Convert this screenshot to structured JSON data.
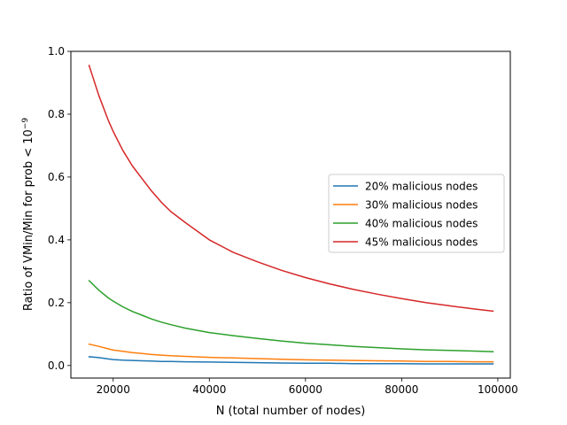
{
  "chart_data": {
    "type": "line",
    "title": "",
    "xlabel": "N (total number of nodes)",
    "ylabel_prefix": "Ratio of VMin/Min for prob < 10",
    "ylabel_exponent": "−9",
    "xlim": [
      11200,
      102600
    ],
    "ylim": [
      -0.04,
      1.0
    ],
    "xticks": [
      20000,
      40000,
      60000,
      80000,
      100000
    ],
    "xtick_labels": [
      "20000",
      "40000",
      "60000",
      "80000",
      "100000"
    ],
    "yticks": [
      0.0,
      0.2,
      0.4,
      0.6,
      0.8,
      1.0
    ],
    "ytick_labels": [
      "0.0",
      "0.2",
      "0.4",
      "0.6",
      "0.8",
      "1.0"
    ],
    "grid": false,
    "legend_position": "center-right",
    "x": [
      15000,
      17000,
      19000,
      20000,
      22000,
      24000,
      26000,
      28000,
      30000,
      32000,
      35000,
      40000,
      45000,
      50000,
      55000,
      60000,
      65000,
      70000,
      75000,
      80000,
      85000,
      90000,
      95000,
      99000
    ],
    "series": [
      {
        "name": "20% malicious nodes",
        "color": "#1f77b4",
        "values": [
          0.028,
          0.025,
          0.021,
          0.019,
          0.017,
          0.016,
          0.015,
          0.014,
          0.013,
          0.013,
          0.012,
          0.011,
          0.01,
          0.009,
          0.008,
          0.007,
          0.007,
          0.006,
          0.006,
          0.006,
          0.005,
          0.005,
          0.005,
          0.005
        ]
      },
      {
        "name": "30% malicious nodes",
        "color": "#ff7f0e",
        "values": [
          0.068,
          0.061,
          0.053,
          0.049,
          0.045,
          0.041,
          0.038,
          0.035,
          0.033,
          0.031,
          0.029,
          0.026,
          0.024,
          0.022,
          0.02,
          0.018,
          0.017,
          0.016,
          0.015,
          0.014,
          0.013,
          0.013,
          0.012,
          0.012
        ]
      },
      {
        "name": "40% malicious nodes",
        "color": "#2ca02c",
        "values": [
          0.27,
          0.24,
          0.215,
          0.205,
          0.187,
          0.172,
          0.16,
          0.148,
          0.138,
          0.13,
          0.119,
          0.105,
          0.095,
          0.086,
          0.078,
          0.071,
          0.066,
          0.061,
          0.057,
          0.053,
          0.05,
          0.048,
          0.046,
          0.044
        ]
      },
      {
        "name": "45% malicious nodes",
        "color": "#d62728",
        "values": [
          0.955,
          0.86,
          0.78,
          0.745,
          0.685,
          0.635,
          0.595,
          0.555,
          0.52,
          0.49,
          0.455,
          0.4,
          0.36,
          0.33,
          0.303,
          0.28,
          0.26,
          0.242,
          0.227,
          0.213,
          0.2,
          0.19,
          0.18,
          0.173
        ]
      }
    ]
  }
}
